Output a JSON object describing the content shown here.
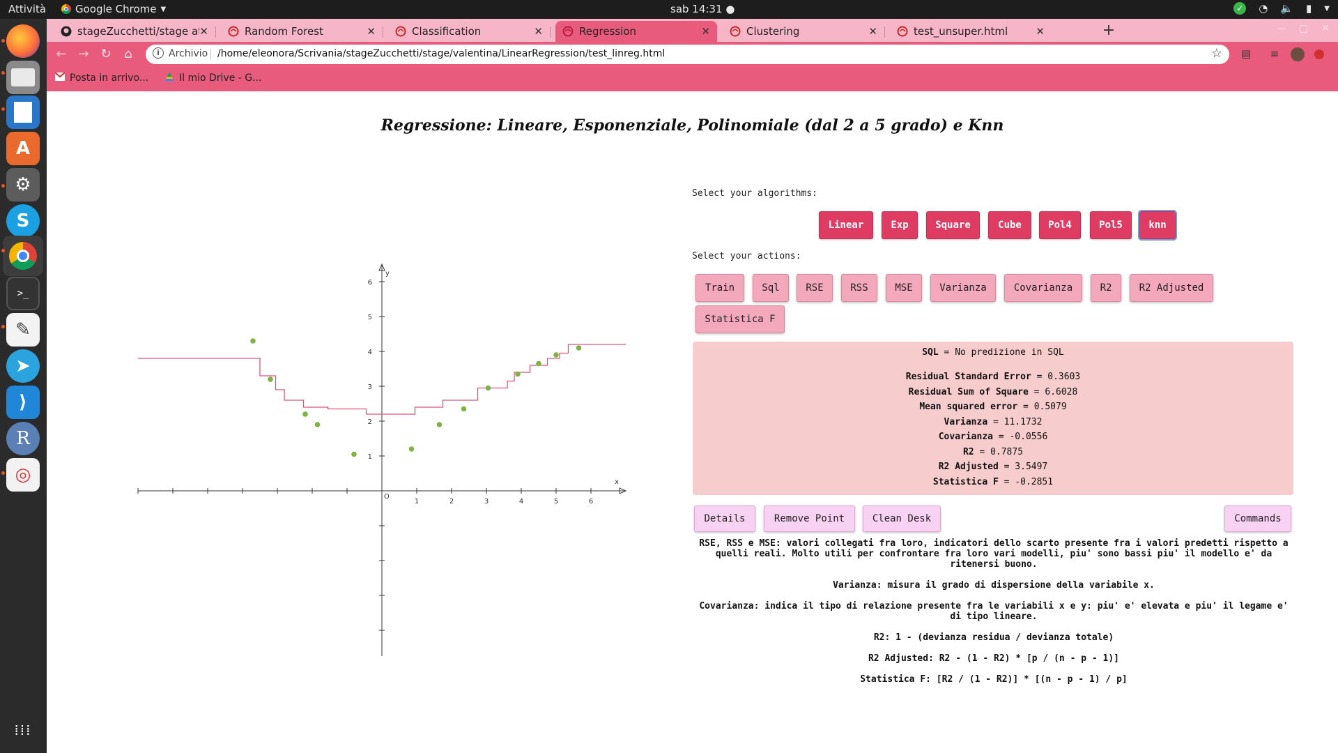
{
  "os": {
    "activities": "Attività",
    "app_name": "Google Chrome",
    "clock": "sab 14:31"
  },
  "browser": {
    "tabs": [
      {
        "label": "stageZucchetti/stage at m",
        "icon": "github-icon"
      },
      {
        "label": "Random Forest",
        "icon": "web-icon"
      },
      {
        "label": "Classification",
        "icon": "web-icon"
      },
      {
        "label": "Regression",
        "icon": "web-icon",
        "active": true
      },
      {
        "label": "Clustering",
        "icon": "web-icon"
      },
      {
        "label": "test_unsuper.html",
        "icon": "web-icon"
      }
    ],
    "address": {
      "protocol_label": "Archivio",
      "url": "/home/eleonora/Scrivania/stageZucchetti/stage/valentina/LinearRegression/test_linreg.html"
    },
    "bookmarks": [
      {
        "label": "Posta in arrivo...",
        "icon": "gmail-icon"
      },
      {
        "label": "Il mio Drive - G...",
        "icon": "drive-icon"
      }
    ],
    "accent": "#e85b7d"
  },
  "page": {
    "title": "Regressione: Lineare, Esponenziale, Polinomiale (dal 2 a 5 grado) e Knn",
    "select_algorithms_label": "Select your algorithms:",
    "algorithms": [
      "Linear",
      "Exp",
      "Square",
      "Cube",
      "Pol4",
      "Pol5",
      "knn"
    ],
    "selected_algorithm": "knn",
    "select_actions_label": "Select your actions:",
    "actions": [
      "Train",
      "Sql",
      "RSE",
      "RSS",
      "MSE",
      "Varianza",
      "Covarianza",
      "R2",
      "R2 Adjusted",
      "Statistica F"
    ],
    "results": [
      {
        "key": "SQL",
        "value": "No predizione in SQL"
      },
      {
        "key": "Residual Standard Error",
        "value": "0.3603"
      },
      {
        "key": "Residual Sum of Square",
        "value": "6.6028"
      },
      {
        "key": "Mean squared error",
        "value": "0.5079"
      },
      {
        "key": "Varianza",
        "value": "11.1732"
      },
      {
        "key": "Covarianza",
        "value": "-0.0556"
      },
      {
        "key": "R2",
        "value": "0.7875"
      },
      {
        "key": "R2 Adjusted",
        "value": "3.5497"
      },
      {
        "key": "Statistica F",
        "value": "-0.2851"
      }
    ],
    "utility_buttons": {
      "details": "Details",
      "remove_point": "Remove Point",
      "clean_desk": "Clean Desk",
      "commands": "Commands"
    },
    "notes": [
      "RSE, RSS e MSE: valori collegati fra loro, indicatori dello scarto presente fra i valori predetti rispetto a quelli reali. Molto utili per confrontare fra loro vari modelli, piu' sono bassi piu' il modello e' da ritenersi buono.",
      "Varianza: misura il grado di dispersione della variabile x.",
      "Covarianza: indica il tipo di relazione presente fra le variabili x e y: piu' e' elevata e piu' il legame e' di tipo lineare.",
      "R2: 1 - (devianza residua / devianza totale)",
      "R2 Adjusted: R2 - (1 - R2) * [p / (n - p - 1)]",
      "Statistica F: [R2 / (1 - R2)] * [(n - p - 1) / p]"
    ]
  },
  "chart_data": {
    "type": "scatter",
    "x_axis_label": "x",
    "y_axis_label": "y",
    "origin_label": "O",
    "x_ticks": [
      1,
      2,
      3,
      4,
      5,
      6
    ],
    "y_ticks": [
      1,
      2,
      3,
      4,
      5,
      6
    ],
    "xlim": [
      -7,
      7
    ],
    "ylim": [
      -6.5,
      6.5
    ],
    "point_color": "#7db343",
    "line_color": "#e0527a",
    "points": [
      {
        "x": -3.7,
        "y": 4.3
      },
      {
        "x": -3.2,
        "y": 3.2
      },
      {
        "x": -2.2,
        "y": 2.2
      },
      {
        "x": -1.85,
        "y": 1.9
      },
      {
        "x": -0.8,
        "y": 1.05
      },
      {
        "x": 0.85,
        "y": 1.2
      },
      {
        "x": 1.65,
        "y": 1.9
      },
      {
        "x": 2.35,
        "y": 2.35
      },
      {
        "x": 3.05,
        "y": 2.95
      },
      {
        "x": 3.9,
        "y": 3.35
      },
      {
        "x": 4.5,
        "y": 3.65
      },
      {
        "x": 5.0,
        "y": 3.9
      },
      {
        "x": 5.65,
        "y": 4.1
      }
    ],
    "knn_curve": [
      [
        -7,
        3.8
      ],
      [
        -3.5,
        3.8
      ],
      [
        -3.5,
        3.3
      ],
      [
        -3.05,
        3.3
      ],
      [
        -3.05,
        2.9
      ],
      [
        -2.8,
        2.9
      ],
      [
        -2.8,
        2.6
      ],
      [
        -2.25,
        2.6
      ],
      [
        -2.25,
        2.4
      ],
      [
        -1.55,
        2.4
      ],
      [
        -1.55,
        2.35
      ],
      [
        -0.45,
        2.35
      ],
      [
        -0.45,
        2.2
      ],
      [
        0.95,
        2.2
      ],
      [
        0.95,
        2.4
      ],
      [
        1.75,
        2.4
      ],
      [
        1.75,
        2.6
      ],
      [
        2.75,
        2.6
      ],
      [
        2.75,
        2.95
      ],
      [
        3.6,
        2.95
      ],
      [
        3.6,
        3.15
      ],
      [
        3.8,
        3.15
      ],
      [
        3.8,
        3.4
      ],
      [
        4.25,
        3.4
      ],
      [
        4.25,
        3.6
      ],
      [
        4.75,
        3.6
      ],
      [
        4.75,
        3.8
      ],
      [
        5.1,
        3.8
      ],
      [
        5.1,
        3.95
      ],
      [
        5.35,
        3.95
      ],
      [
        5.35,
        4.2
      ],
      [
        7,
        4.2
      ]
    ]
  }
}
